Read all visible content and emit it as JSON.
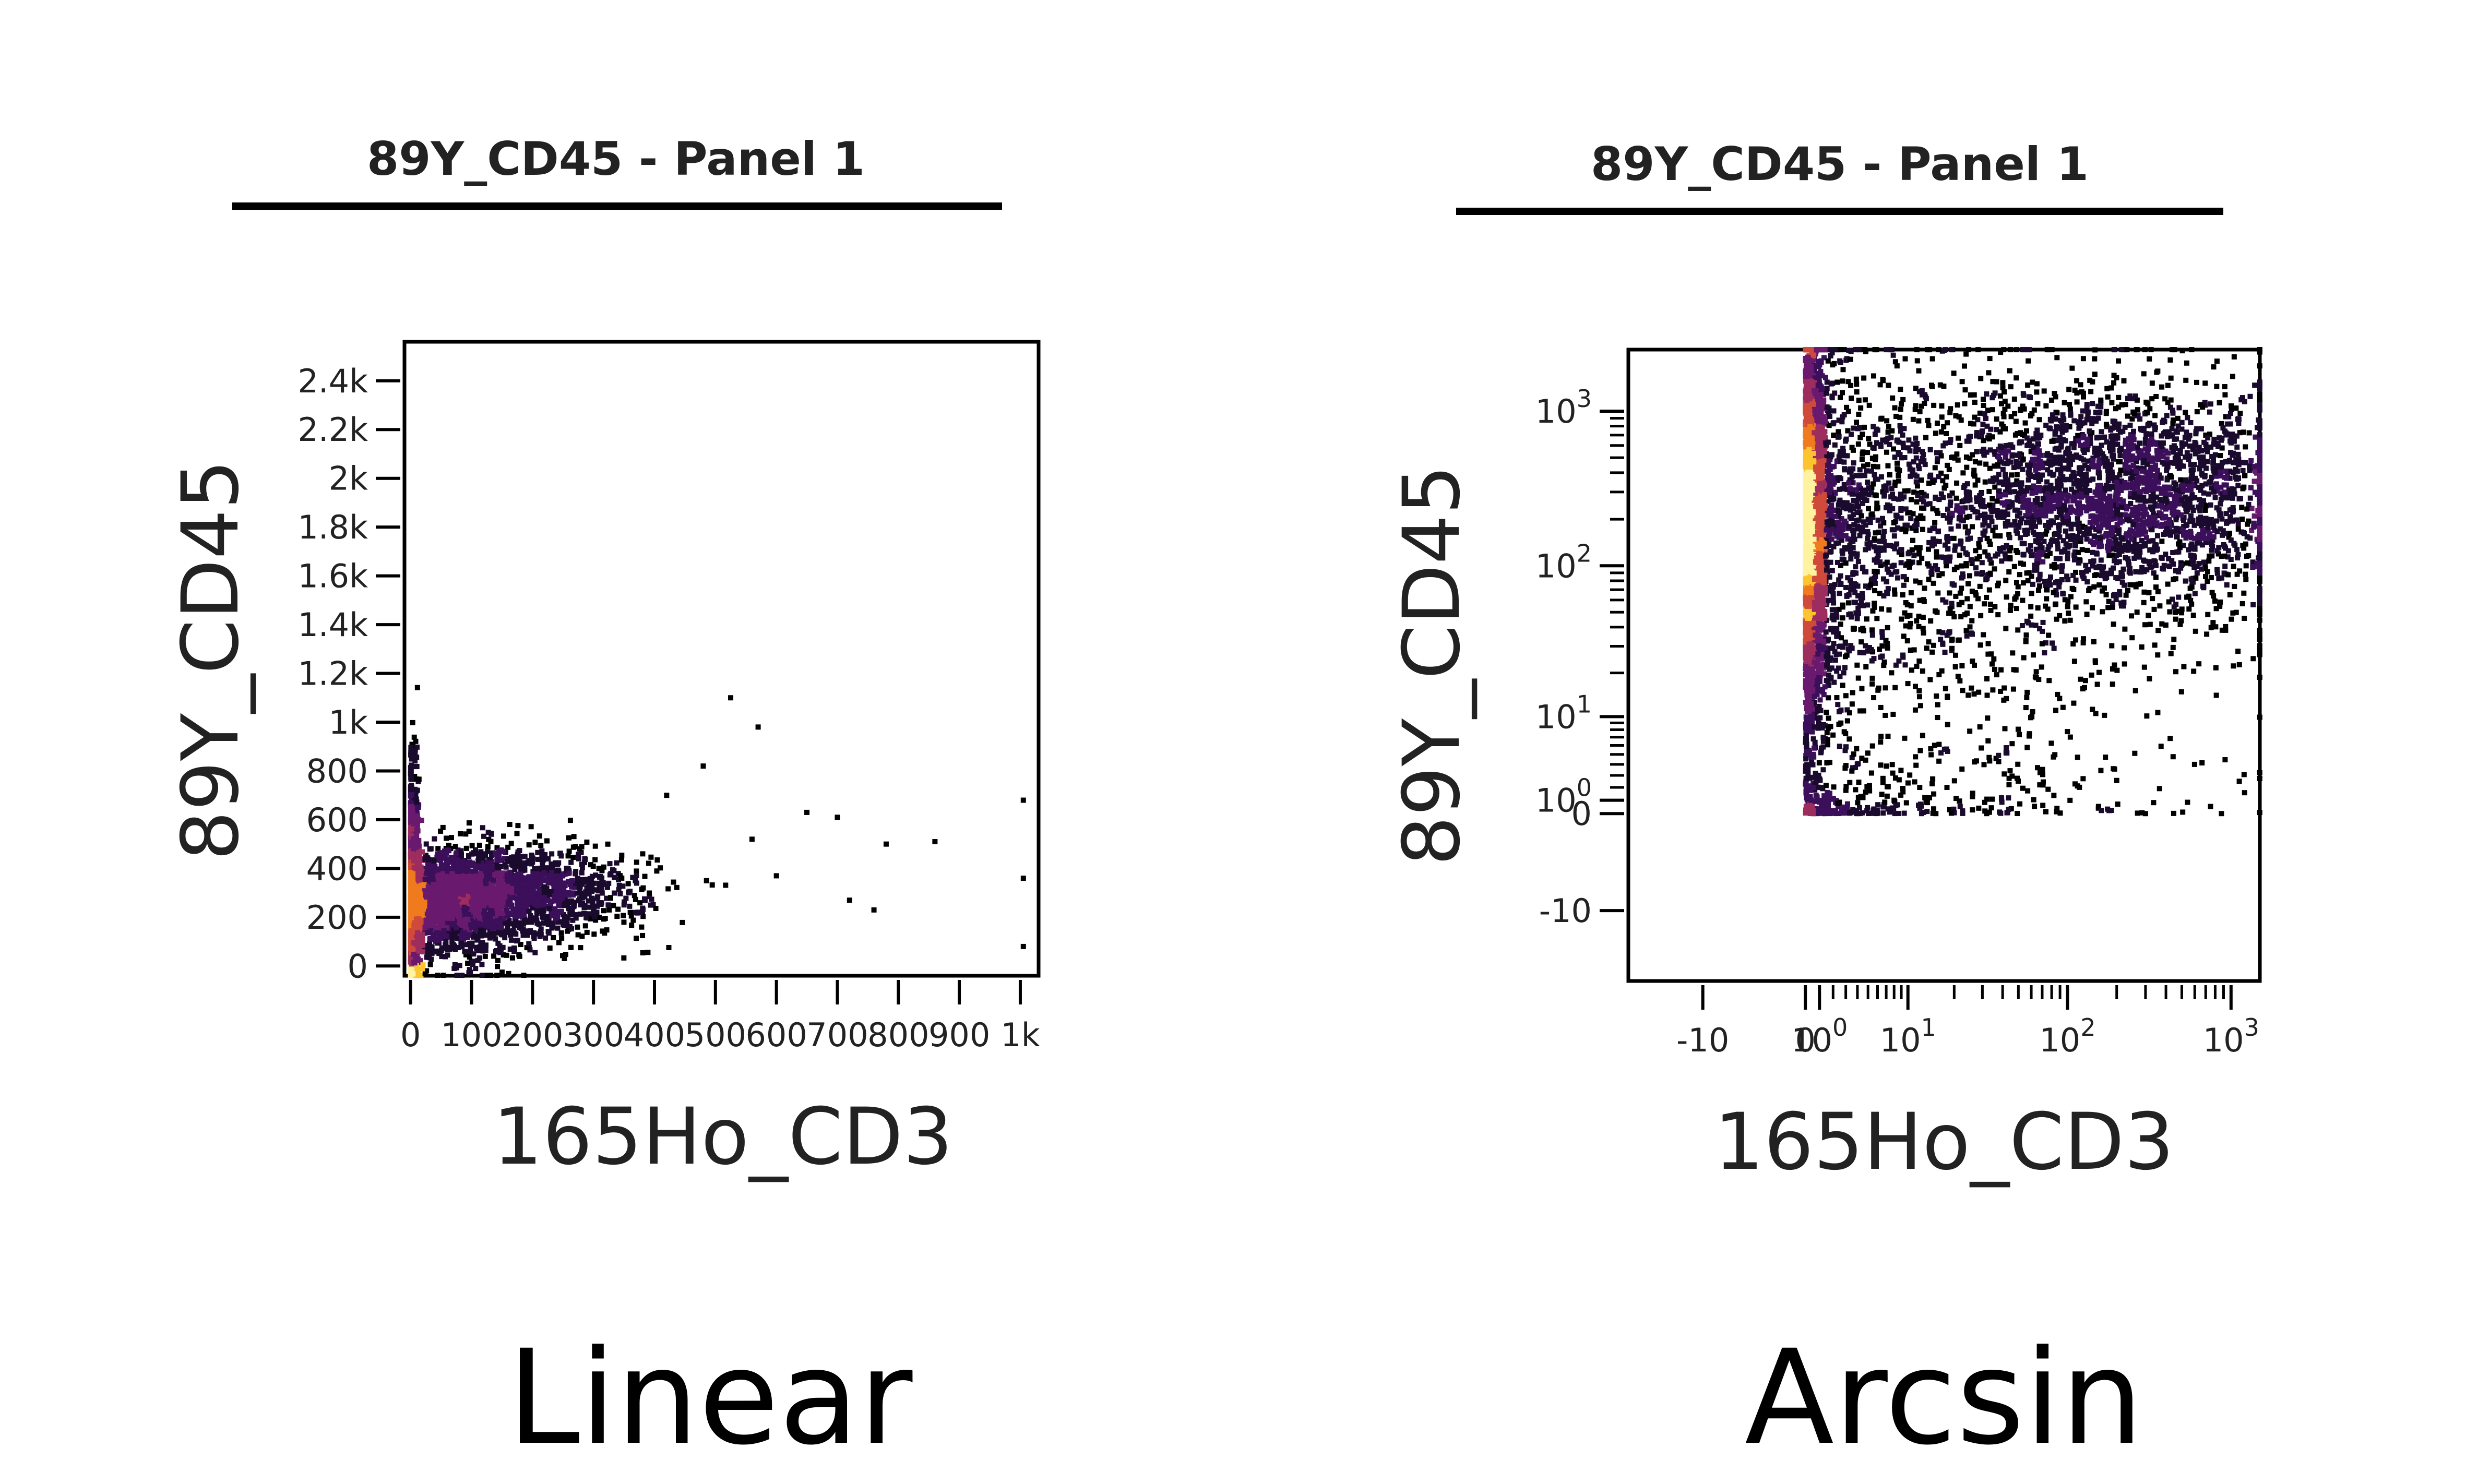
{
  "chart_data": [
    {
      "type": "scatter",
      "title": "89Y_CD45 - Panel 1",
      "caption": "Linear",
      "xlabel": "165Ho_CD3",
      "ylabel": "89Y_CD45",
      "x_scale": "linear",
      "y_scale": "linear",
      "xlim": [
        -10,
        1030
      ],
      "ylim": [
        -40,
        2560
      ],
      "x_ticks": [
        {
          "value": 0,
          "label": "0"
        },
        {
          "value": 100,
          "label": "100"
        },
        {
          "value": 200,
          "label": "200"
        },
        {
          "value": 300,
          "label": "300"
        },
        {
          "value": 400,
          "label": "400"
        },
        {
          "value": 500,
          "label": "500"
        },
        {
          "value": 600,
          "label": "600"
        },
        {
          "value": 700,
          "label": "700"
        },
        {
          "value": 800,
          "label": "800"
        },
        {
          "value": 900,
          "label": "900"
        },
        {
          "value": 1000,
          "label": "1k"
        }
      ],
      "y_ticks": [
        {
          "value": 0,
          "label": "0"
        },
        {
          "value": 200,
          "label": "200"
        },
        {
          "value": 400,
          "label": "400"
        },
        {
          "value": 600,
          "label": "600"
        },
        {
          "value": 800,
          "label": "800"
        },
        {
          "value": 1000,
          "label": "1k"
        },
        {
          "value": 1200,
          "label": "1.2k"
        },
        {
          "value": 1400,
          "label": "1.4k"
        },
        {
          "value": 1600,
          "label": "1.6k"
        },
        {
          "value": 1800,
          "label": "1.8k"
        },
        {
          "value": 2000,
          "label": "2k"
        },
        {
          "value": 2200,
          "label": "2.2k"
        },
        {
          "value": 2400,
          "label": "2.4k"
        }
      ],
      "density_clusters": [
        {
          "x": 3,
          "y": 250,
          "sx": 5,
          "sy": 260,
          "n": 1800
        },
        {
          "x": 70,
          "y": 260,
          "sx": 70,
          "sy": 110,
          "n": 1800
        },
        {
          "x": 190,
          "y": 300,
          "sx": 100,
          "sy": 90,
          "n": 1000
        }
      ],
      "outliers": [
        [
          525,
          1100
        ],
        [
          570,
          980
        ],
        [
          650,
          630
        ],
        [
          700,
          610
        ],
        [
          780,
          500
        ],
        [
          860,
          510
        ],
        [
          600,
          370
        ],
        [
          720,
          270
        ],
        [
          760,
          230
        ],
        [
          1005,
          680
        ],
        [
          1005,
          360
        ],
        [
          1005,
          80
        ],
        [
          480,
          820
        ],
        [
          420,
          700
        ],
        [
          560,
          520
        ]
      ]
    },
    {
      "type": "scatter",
      "title": "89Y_CD45 - Panel 1",
      "caption": "Arcsin",
      "xlabel": "165Ho_CD3",
      "ylabel": "89Y_CD45",
      "x_scale": "arcsinh",
      "y_scale": "arcsinh",
      "xlim": [
        -30,
        1500
      ],
      "ylim": [
        -30,
        2500
      ],
      "x_ticks": [
        {
          "value": -10,
          "label": "-10"
        },
        {
          "value": 0,
          "label": "0"
        },
        {
          "value": 1,
          "label": "10^0"
        },
        {
          "value": 10,
          "label": "10^1"
        },
        {
          "value": 100,
          "label": "10^2"
        },
        {
          "value": 1000,
          "label": "10^3"
        }
      ],
      "y_ticks": [
        {
          "value": -10,
          "label": "-10"
        },
        {
          "value": 0,
          "label": "0"
        },
        {
          "value": 1,
          "label": "10^0"
        },
        {
          "value": 10,
          "label": "10^1"
        },
        {
          "value": 100,
          "label": "10^2"
        },
        {
          "value": 1000,
          "label": "10^3"
        }
      ],
      "density_clusters": [
        {
          "x": 0,
          "y": 180,
          "sx": 0.3,
          "sy": 0.55,
          "n": 3200,
          "log": true
        },
        {
          "x": 3,
          "y": 200,
          "sx": 0.9,
          "sy": 0.5,
          "n": 1400,
          "log": true
        },
        {
          "x": 220,
          "y": 280,
          "sx": 0.6,
          "sy": 0.35,
          "n": 2600,
          "log": true
        },
        {
          "x": 3,
          "y": 8,
          "sx": 1.0,
          "sy": 1.4,
          "n": 700,
          "log": true
        },
        {
          "x": 25,
          "y": 60,
          "sx": 1.0,
          "sy": 0.9,
          "n": 500,
          "log": true
        }
      ],
      "outliers": [
        [
          800,
          400
        ],
        [
          650,
          1100
        ],
        [
          300,
          0
        ],
        [
          12,
          2
        ],
        [
          18,
          2
        ],
        [
          8,
          1
        ],
        [
          1000,
          110
        ]
      ]
    }
  ]
}
